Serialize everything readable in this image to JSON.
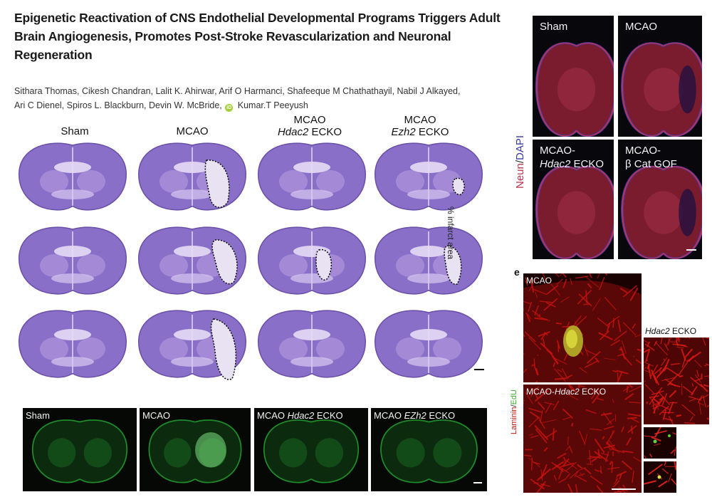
{
  "paper": {
    "title": "Epigenetic Reactivation of CNS Endothelial Developmental Programs Triggers Adult Brain Angiogenesis, Promotes Post-Stroke Revascularization and Neuronal Regeneration",
    "authors_line1": "Sithara Thomas, Cikesh Chandran, Lalit K. Ahirwar, Arif O Harmanci, Shafeeque M Chathathayil, Nabil J Alkayed,",
    "authors_line2": "Ari C Dienel, Spiros L. Blackburn, Devin W. McBride,",
    "authors_last": "Kumar.T Peeyush",
    "orcid_glyph": "iD"
  },
  "nissl_panel": {
    "columns": [
      {
        "line1": "Sham",
        "italic": "",
        "rest": ""
      },
      {
        "line1": "MCAO",
        "italic": "",
        "rest": ""
      },
      {
        "line1": "MCAO",
        "italic": "Hdac2",
        "rest": " ECKO"
      },
      {
        "line1": "MCAO",
        "italic": "Ezh2",
        "rest": " ECKO"
      }
    ],
    "side_label": "% infarct area",
    "stain_color": "#8a6fc9"
  },
  "edu_strip": {
    "panels": [
      {
        "prefix": "Sham",
        "italic": "",
        "suffix": ""
      },
      {
        "prefix": "MCAO",
        "italic": "",
        "suffix": ""
      },
      {
        "prefix": "MCAO ",
        "italic": "Hdac2",
        "suffix": " ECKO"
      },
      {
        "prefix": "MCAO ",
        "italic": "EZh2",
        "suffix": " ECKO"
      }
    ],
    "fluor_color": "#1f8a2a"
  },
  "neun_panel": {
    "axis_label_neun": "Neun",
    "axis_label_sep": "/",
    "axis_label_dapi": "DAPI",
    "panels": [
      {
        "line1": "Sham",
        "italic": "",
        "rest": ""
      },
      {
        "line1": "MCAO",
        "italic": "",
        "rest": ""
      },
      {
        "line1": "MCAO-",
        "italic": "Hdac2",
        "rest": " ECKO"
      },
      {
        "line1": "MCAO-",
        "italic": "",
        "rest": "β Cat GOF"
      }
    ],
    "neun_color": "#c0314d",
    "dapi_color": "#3a3aa8"
  },
  "laminin_panel": {
    "panel_letter": "e",
    "axis_label_laminin": "Laminin",
    "axis_label_sep": "/",
    "axis_label_edu": "EdU",
    "top_label": "MCAO",
    "bottom_label_prefix": "MCAO-",
    "bottom_label_italic": "Hdac2",
    "bottom_label_suffix": " ECKO",
    "side_label_italic": "Hdac2",
    "side_label_suffix": " ECKO",
    "laminin_color": "#c8140f",
    "edu_color": "#5fd23a"
  }
}
